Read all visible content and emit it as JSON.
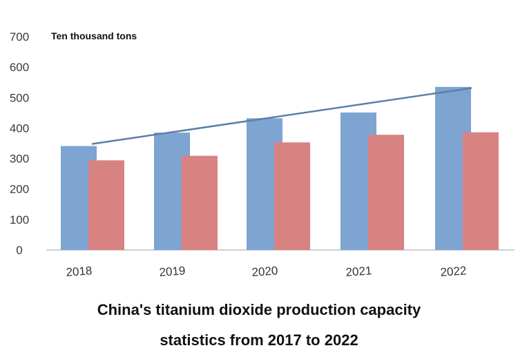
{
  "chart_data": {
    "type": "bar",
    "title": "",
    "xlabel": "",
    "ylabel": "",
    "unit_label": "Ten thousand tons",
    "categories": [
      "2018",
      "2019",
      "2020",
      "2021",
      "2022"
    ],
    "series": [
      {
        "values": [
          341,
          385,
          432,
          451,
          535
        ],
        "color": "#7ea4d2"
      },
      {
        "values": [
          294,
          309,
          353,
          378,
          386
        ],
        "color": "#d98282"
      }
    ],
    "trendline": {
      "from": 348,
      "to": 531,
      "color": "#5a7fa8"
    },
    "ylim": [
      0,
      700
    ],
    "yticks": [
      0,
      100,
      200,
      300,
      400,
      500,
      600,
      700
    ],
    "grid": false,
    "legend": "none"
  },
  "caption": {
    "line1": "China's titanium dioxide production capacity",
    "line2": "statistics from 2017 to 2022"
  }
}
